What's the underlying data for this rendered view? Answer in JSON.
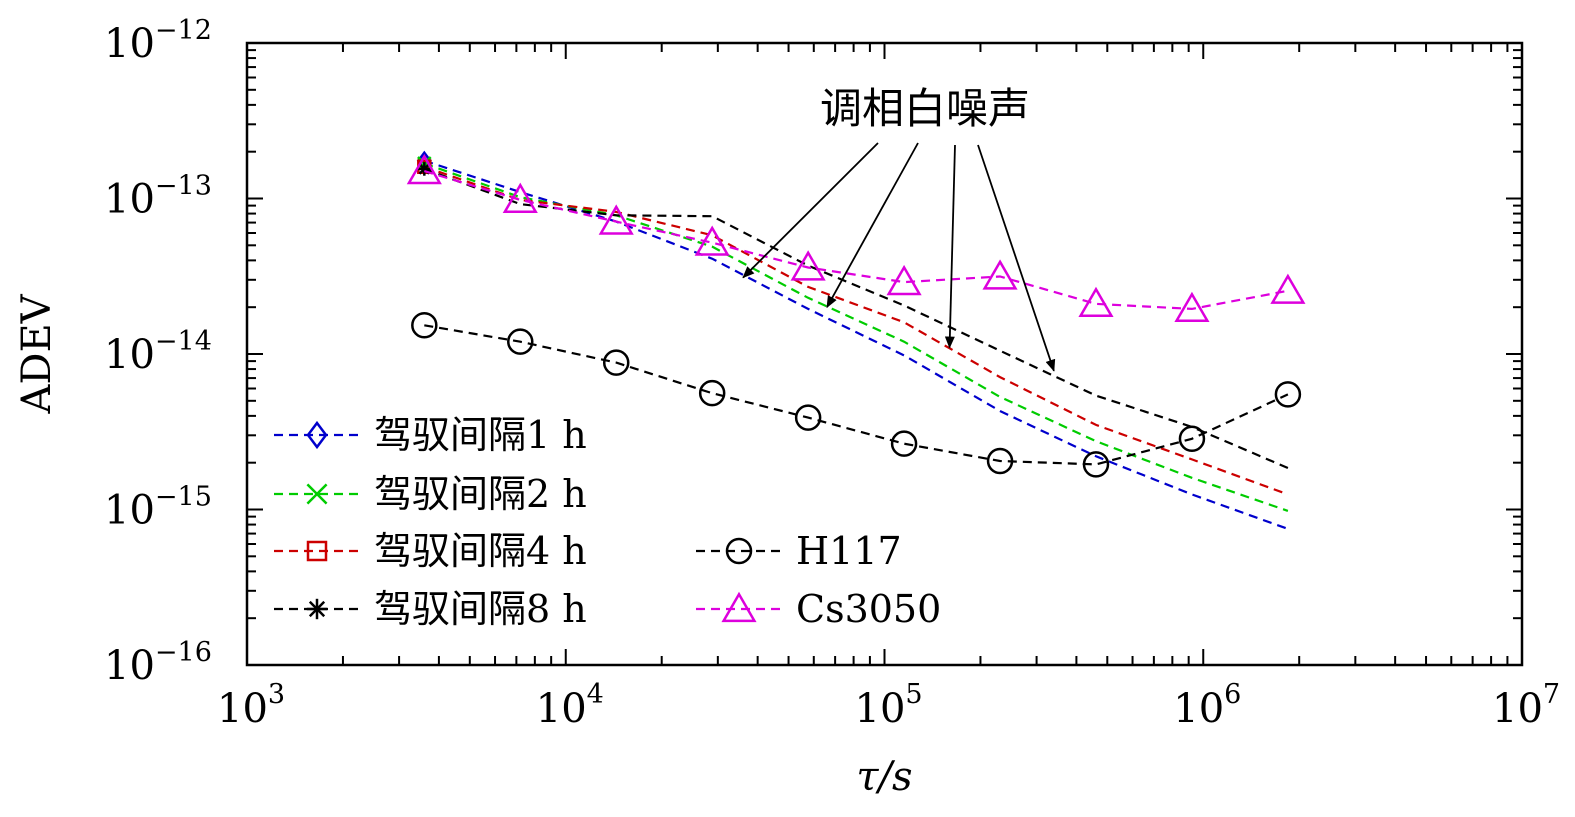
{
  "chart_data": {
    "type": "line",
    "title": "",
    "xlabel": "τ/s",
    "ylabel": "ADEV",
    "xscale": "log",
    "yscale": "log",
    "xlim": [
      1000,
      10000000
    ],
    "ylim": [
      1e-16,
      1e-12
    ],
    "grid": false,
    "x_tick_labels": [
      {
        "base": "10",
        "exp": "3"
      },
      {
        "base": "10",
        "exp": "4"
      },
      {
        "base": "10",
        "exp": "5"
      },
      {
        "base": "10",
        "exp": "6"
      },
      {
        "base": "10",
        "exp": "7"
      }
    ],
    "y_tick_labels": [
      {
        "base": "10",
        "exp": "−12"
      },
      {
        "base": "10",
        "exp": "−13"
      },
      {
        "base": "10",
        "exp": "−14"
      },
      {
        "base": "10",
        "exp": "−15"
      },
      {
        "base": "10",
        "exp": "−16"
      }
    ],
    "series": [
      {
        "name": "驾驭间隔1 h",
        "color": "#0000cc",
        "marker": "diamond",
        "x": [
          3600,
          7200,
          14400,
          28800,
          57600,
          115200,
          230400,
          460800,
          921600,
          1843200
        ],
        "y": [
          1.75e-13,
          1.1e-13,
          7.1e-14,
          4.1e-14,
          1.95e-14,
          9.8e-15,
          4.3e-15,
          2.2e-15,
          1.25e-15,
          7.5e-16
        ]
      },
      {
        "name": "驾驭间隔2 h",
        "color": "#00cc00",
        "marker": "x",
        "x": [
          3600,
          7200,
          14400,
          28800,
          57600,
          115200,
          230400,
          460800,
          921600,
          1843200
        ],
        "y": [
          1.68e-13,
          1.02e-13,
          7.8e-14,
          4.9e-14,
          2.3e-14,
          1.2e-14,
          5.3e-15,
          2.75e-15,
          1.6e-15,
          9.8e-16
        ]
      },
      {
        "name": "驾驭间隔4 h",
        "color": "#cc0000",
        "marker": "square",
        "x": [
          3600,
          7200,
          14400,
          28800,
          57600,
          115200,
          230400,
          460800,
          921600,
          1843200
        ],
        "y": [
          1.6e-13,
          9.8e-14,
          8.2e-14,
          5.8e-14,
          2.7e-14,
          1.6e-14,
          7.1e-15,
          3.5e-15,
          2.1e-15,
          1.25e-15
        ]
      },
      {
        "name": "驾驭间隔8 h",
        "color": "#000000",
        "marker": "star",
        "x": [
          3600,
          7200,
          14400,
          28800,
          57600,
          115200,
          230400,
          460800,
          921600,
          1843200
        ],
        "y": [
          1.55e-13,
          9.2e-14,
          7.8e-14,
          7.7e-14,
          3.7e-14,
          2.05e-14,
          1.05e-14,
          5.4e-15,
          3.4e-15,
          1.85e-15
        ]
      },
      {
        "name": "H117",
        "color": "#000000",
        "marker": "circle",
        "x": [
          3600,
          7200,
          14400,
          28800,
          57600,
          115200,
          230400,
          460800,
          921600,
          1843200
        ],
        "y": [
          1.53e-14,
          1.2e-14,
          8.8e-15,
          5.6e-15,
          3.9e-15,
          2.65e-15,
          2.05e-15,
          1.95e-15,
          2.85e-15,
          5.5e-15
        ]
      },
      {
        "name": "Cs3050",
        "color": "#dd00dd",
        "marker": "triangle",
        "x": [
          3600,
          7200,
          14400,
          28800,
          57600,
          115200,
          230400,
          460800,
          921600,
          1843200
        ],
        "y": [
          1.5e-13,
          9.8e-14,
          7.1e-14,
          5.2e-14,
          3.6e-14,
          2.9e-14,
          3.15e-14,
          2.1e-14,
          1.95e-14,
          2.55e-14
        ]
      }
    ],
    "annotation": {
      "text": "调相白噪声",
      "arrow_targets": [
        {
          "x": 36000,
          "y": 3.1e-14
        },
        {
          "x": 66000,
          "y": 2e-14
        },
        {
          "x": 160000,
          "y": 1.1e-14
        },
        {
          "x": 340000,
          "y": 7.8e-15
        }
      ]
    },
    "legend": {
      "placement": "bottom-left",
      "columns": 2
    }
  }
}
